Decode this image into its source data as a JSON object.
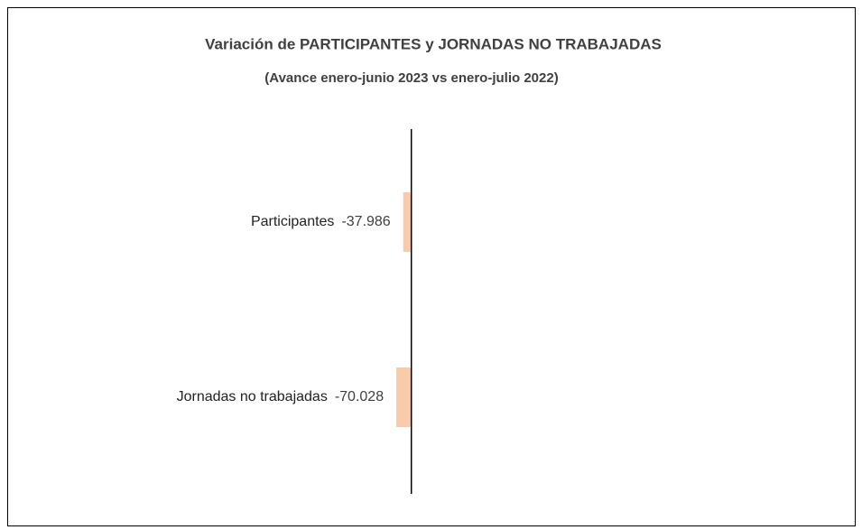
{
  "chart_data": {
    "type": "hbar",
    "title": "Variación de PARTICIPANTES y JORNADAS NO TRABAJADAS",
    "subtitle": "(Avance enero-junio 2023 vs enero-julio 2022)",
    "categories": [
      "Participantes",
      "Jornadas no trabajadas"
    ],
    "values": [
      -37.986,
      -70.028
    ],
    "color": "#f8cbad",
    "xlim": [
      -1500,
      2000
    ]
  }
}
